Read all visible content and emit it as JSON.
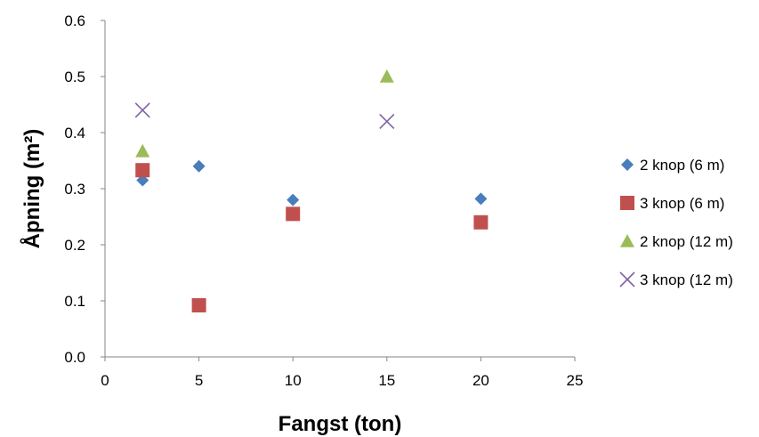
{
  "chart_data": {
    "type": "scatter",
    "xlabel": "Fangst (ton)",
    "ylabel": "Åpning (m²)",
    "xlim": [
      0,
      25
    ],
    "ylim": [
      0,
      0.6
    ],
    "x_ticks": [
      "0",
      "5",
      "10",
      "15",
      "20",
      "25"
    ],
    "y_ticks": [
      "0.0",
      "0.1",
      "0.2",
      "0.3",
      "0.4",
      "0.5",
      "0.6"
    ],
    "grid": false,
    "legend_position": "right",
    "series": [
      {
        "name": "2 knop (6 m)",
        "marker": "diamond",
        "color": "#4a7ebb",
        "points": [
          [
            2,
            0.315
          ],
          [
            5,
            0.34
          ],
          [
            10,
            0.28
          ],
          [
            20,
            0.282
          ]
        ]
      },
      {
        "name": "3 knop (6 m)",
        "marker": "square",
        "color": "#c0504d",
        "points": [
          [
            2,
            0.333
          ],
          [
            5,
            0.092
          ],
          [
            10,
            0.255
          ],
          [
            20,
            0.24
          ]
        ]
      },
      {
        "name": "2 knop (12 m)",
        "marker": "triangle",
        "color": "#9bbb59",
        "points": [
          [
            2,
            0.367
          ],
          [
            15,
            0.5
          ]
        ]
      },
      {
        "name": "3 knop (12 m)",
        "marker": "x",
        "color": "#8064a2",
        "points": [
          [
            2,
            0.44
          ],
          [
            15,
            0.42
          ]
        ]
      }
    ]
  }
}
